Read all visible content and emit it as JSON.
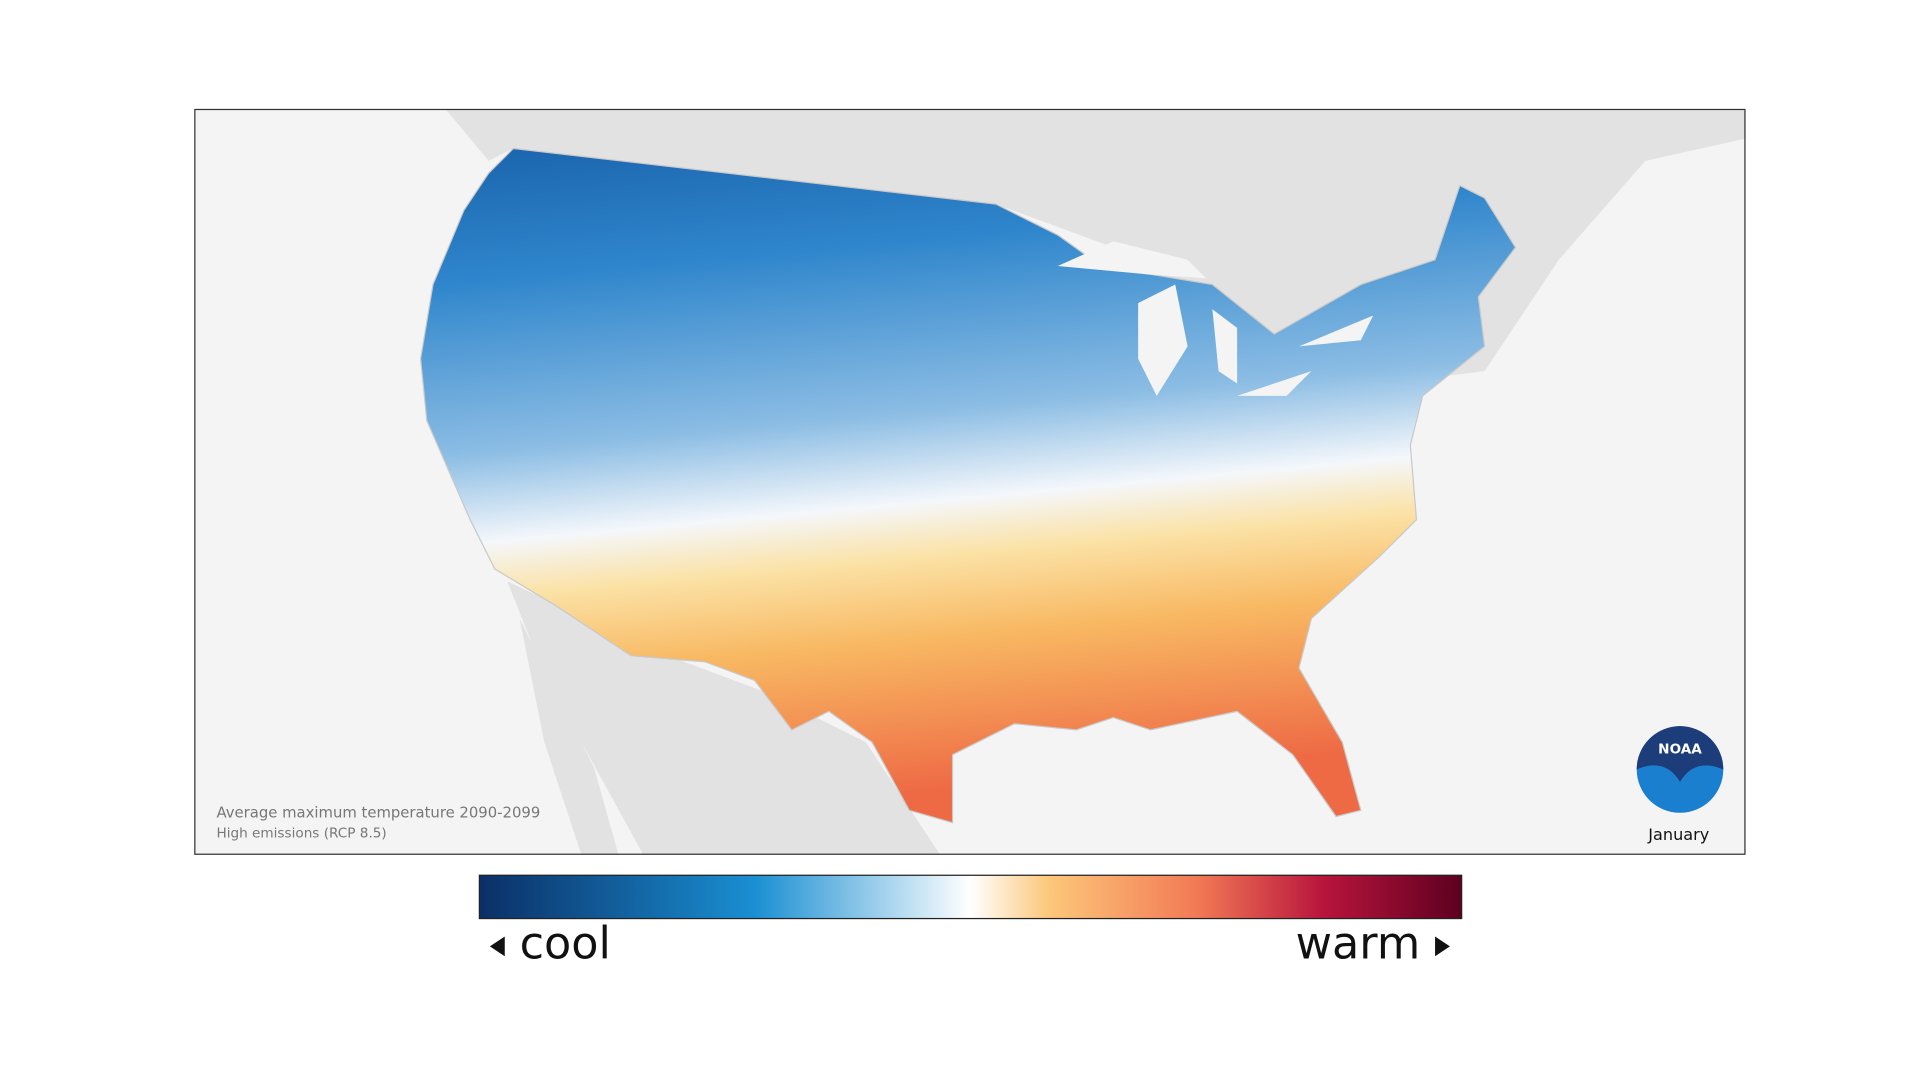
{
  "map": {
    "caption": {
      "title": "Average maximum temperature 2090-2099",
      "subtitle": "High emissions (RCP 8.5)"
    },
    "month": "January",
    "logo": "NOAA"
  },
  "legend": {
    "low": "cool",
    "high": "warm"
  }
}
